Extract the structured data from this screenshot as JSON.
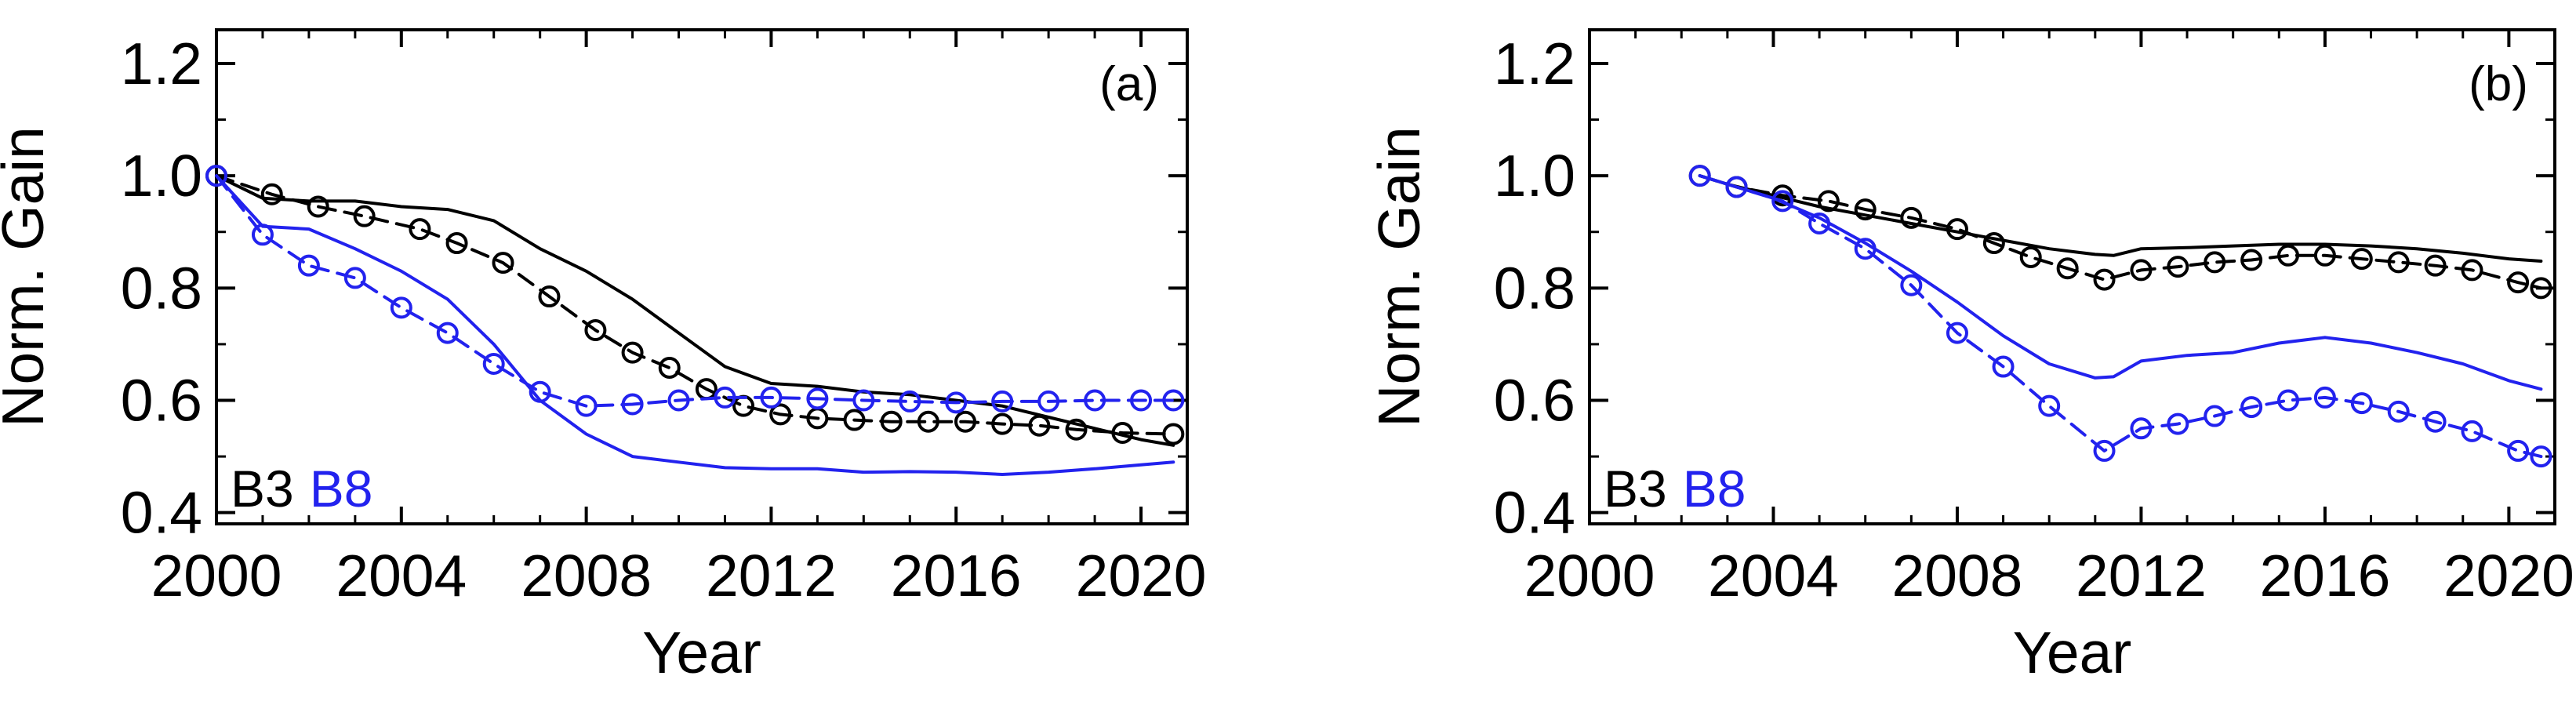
{
  "colors": {
    "B3": "#000000",
    "B8": "#2222ee"
  },
  "chart_data": [
    {
      "type": "line",
      "panel_label": "(a)",
      "xlabel": "Year",
      "ylabel": "Norm. Gain",
      "xlim": [
        2000,
        2021
      ],
      "ylim": [
        0.38,
        1.26
      ],
      "xticks": [
        2000,
        2004,
        2008,
        2012,
        2016,
        2020
      ],
      "xtick_labels": [
        "2000",
        "2004",
        "2008",
        "2012",
        "2016",
        "2020"
      ],
      "yticks": [
        0.4,
        0.6,
        0.8,
        1.0,
        1.2
      ],
      "ytick_labels": [
        "0.4",
        "0.6",
        "0.8",
        "1.0",
        "1.2"
      ],
      "legend": [
        {
          "text": "B3",
          "color": "#000000"
        },
        {
          "text": "B8",
          "color": "#2222ee"
        }
      ],
      "series": [
        {
          "name": "B3 solid",
          "band": "B3",
          "color": "#000000",
          "style": "solid",
          "markers": false,
          "x": [
            2000,
            2001,
            2002,
            2003,
            2004,
            2005,
            2006,
            2007,
            2008,
            2009,
            2010,
            2011,
            2012,
            2013,
            2014,
            2015,
            2016,
            2017,
            2018,
            2019,
            2020,
            2020.7
          ],
          "y": [
            1.0,
            0.96,
            0.955,
            0.955,
            0.945,
            0.94,
            0.92,
            0.87,
            0.83,
            0.78,
            0.72,
            0.66,
            0.63,
            0.625,
            0.615,
            0.61,
            0.6,
            0.59,
            0.57,
            0.55,
            0.53,
            0.52
          ]
        },
        {
          "name": "B3 dashed with circles",
          "band": "B3",
          "color": "#000000",
          "style": "dashed",
          "markers": true,
          "x": [
            2000,
            2001.2,
            2002.2,
            2003.2,
            2004.4,
            2005.2,
            2006.2,
            2007.2,
            2008.2,
            2009,
            2009.8,
            2010.6,
            2011.4,
            2012.2,
            2013,
            2013.8,
            2014.6,
            2015.4,
            2016.2,
            2017,
            2017.8,
            2018.6,
            2019.6,
            2020.7
          ],
          "y": [
            1.0,
            0.967,
            0.945,
            0.928,
            0.905,
            0.88,
            0.845,
            0.785,
            0.725,
            0.685,
            0.658,
            0.62,
            0.59,
            0.575,
            0.568,
            0.565,
            0.562,
            0.562,
            0.562,
            0.558,
            0.555,
            0.548,
            0.542,
            0.54
          ]
        },
        {
          "name": "B8 solid",
          "band": "B8",
          "color": "#2222ee",
          "style": "solid",
          "markers": false,
          "x": [
            2000,
            2001,
            2002,
            2003,
            2004,
            2005,
            2006,
            2007,
            2008,
            2009,
            2010,
            2011,
            2012,
            2013,
            2014,
            2015,
            2016,
            2017,
            2018,
            2019,
            2020,
            2020.7
          ],
          "y": [
            1.0,
            0.91,
            0.905,
            0.87,
            0.83,
            0.78,
            0.7,
            0.6,
            0.54,
            0.5,
            0.49,
            0.48,
            0.478,
            0.478,
            0.472,
            0.473,
            0.472,
            0.468,
            0.472,
            0.478,
            0.485,
            0.49
          ]
        },
        {
          "name": "B8 dashed with circles",
          "band": "B8",
          "color": "#2222ee",
          "style": "dashed",
          "markers": true,
          "x": [
            2000,
            2001,
            2002,
            2003,
            2004,
            2005,
            2006,
            2007,
            2008,
            2009,
            2010,
            2011,
            2012,
            2013,
            2014,
            2015,
            2016,
            2017,
            2018,
            2019,
            2020,
            2020.7
          ],
          "y": [
            1.0,
            0.895,
            0.84,
            0.818,
            0.765,
            0.72,
            0.665,
            0.615,
            0.59,
            0.593,
            0.6,
            0.605,
            0.605,
            0.603,
            0.6,
            0.598,
            0.596,
            0.598,
            0.598,
            0.6,
            0.6,
            0.6
          ]
        }
      ]
    },
    {
      "type": "line",
      "panel_label": "(b)",
      "xlabel": "Year",
      "ylabel": "Norm. Gain",
      "xlim": [
        2000,
        2021
      ],
      "ylim": [
        0.38,
        1.26
      ],
      "xticks": [
        2000,
        2004,
        2008,
        2012,
        2016,
        2020
      ],
      "xtick_labels": [
        "2000",
        "2004",
        "2008",
        "2012",
        "2016",
        "2020"
      ],
      "yticks": [
        0.4,
        0.6,
        0.8,
        1.0,
        1.2
      ],
      "ytick_labels": [
        "0.4",
        "0.6",
        "0.8",
        "1.0",
        "1.2"
      ],
      "legend": [
        {
          "text": "B3",
          "color": "#000000"
        },
        {
          "text": "B8",
          "color": "#2222ee"
        }
      ],
      "series": [
        {
          "name": "B3 solid",
          "band": "B3",
          "color": "#000000",
          "style": "solid",
          "markers": false,
          "x": [
            2002.4,
            2003,
            2004,
            2005,
            2006,
            2007,
            2008,
            2009,
            2010,
            2011,
            2011.4,
            2012,
            2013,
            2014,
            2015,
            2016,
            2017,
            2018,
            2019,
            2020,
            2020.7
          ],
          "y": [
            1.0,
            0.985,
            0.965,
            0.945,
            0.93,
            0.915,
            0.9,
            0.885,
            0.87,
            0.86,
            0.858,
            0.87,
            0.872,
            0.875,
            0.878,
            0.878,
            0.875,
            0.87,
            0.862,
            0.852,
            0.848
          ]
        },
        {
          "name": "B3 dashed with circles",
          "band": "B3",
          "color": "#000000",
          "style": "dashed",
          "markers": true,
          "x": [
            2002.4,
            2003.2,
            2004.2,
            2005.2,
            2006,
            2007,
            2008,
            2008.8,
            2009.6,
            2010.4,
            2011.2,
            2012,
            2012.8,
            2013.6,
            2014.4,
            2015.2,
            2016,
            2016.8,
            2017.6,
            2018.4,
            2019.2,
            2020.2,
            2020.7
          ],
          "y": [
            1.0,
            0.98,
            0.965,
            0.955,
            0.94,
            0.925,
            0.905,
            0.88,
            0.855,
            0.835,
            0.815,
            0.832,
            0.838,
            0.846,
            0.85,
            0.858,
            0.858,
            0.852,
            0.846,
            0.84,
            0.832,
            0.81,
            0.8
          ]
        },
        {
          "name": "B8 solid",
          "band": "B8",
          "color": "#2222ee",
          "style": "solid",
          "markers": false,
          "x": [
            2002.4,
            2003,
            2004,
            2005,
            2006,
            2007,
            2008,
            2009,
            2010,
            2011,
            2011.4,
            2012,
            2013,
            2014,
            2015,
            2016,
            2017,
            2018,
            2019,
            2020,
            2020.7
          ],
          "y": [
            1.0,
            0.985,
            0.96,
            0.925,
            0.88,
            0.83,
            0.775,
            0.715,
            0.665,
            0.64,
            0.642,
            0.67,
            0.68,
            0.685,
            0.702,
            0.712,
            0.702,
            0.685,
            0.665,
            0.635,
            0.62
          ]
        },
        {
          "name": "B8 dashed with circles",
          "band": "B8",
          "color": "#2222ee",
          "style": "dashed",
          "markers": true,
          "x": [
            2002.4,
            2003.2,
            2004.2,
            2005,
            2006,
            2007,
            2008,
            2009,
            2010,
            2011.2,
            2012,
            2012.8,
            2013.6,
            2014.4,
            2015.2,
            2016,
            2016.8,
            2017.6,
            2018.4,
            2019.2,
            2020.2,
            2020.7
          ],
          "y": [
            1.0,
            0.98,
            0.955,
            0.915,
            0.87,
            0.805,
            0.72,
            0.66,
            0.59,
            0.51,
            0.55,
            0.558,
            0.572,
            0.588,
            0.6,
            0.605,
            0.595,
            0.58,
            0.562,
            0.545,
            0.51,
            0.5
          ]
        }
      ]
    }
  ]
}
